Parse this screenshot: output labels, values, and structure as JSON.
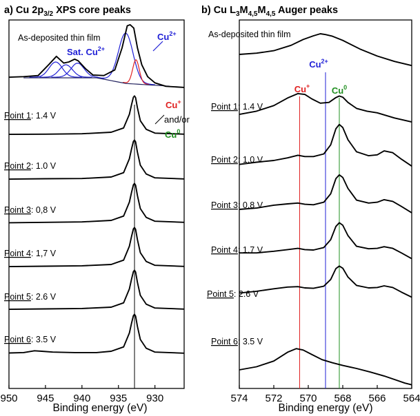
{
  "chart_data": [
    {
      "type": "line",
      "title_main": "a) Cu 2p",
      "title_sub": "3/2",
      "title_rest": " XPS core peaks",
      "xlabel": "Binding energy (eV)",
      "ylabel": "",
      "x_reversed": true,
      "xlim": [
        950,
        926
      ],
      "xticks": [
        950,
        945,
        940,
        935,
        930
      ],
      "yticks": [],
      "reference_line": {
        "x": 932.8,
        "color": "#000000"
      },
      "annotations": {
        "sat": "Sat. Cu",
        "sat_sup": "2+",
        "cu2": "Cu",
        "cu2_sup": "2+",
        "cu1": "Cu",
        "cu1_sup": "+",
        "andor": "and/or",
        "cu0": "Cu",
        "cu0_sup": "0"
      },
      "colors": {
        "cu2plus": "#1f1fd6",
        "cu1plus": "#e02020",
        "cu0": "#1f8f1f",
        "background": "#23235f"
      },
      "series": [
        {
          "name": "As-deposited thin film",
          "label_prefix": "As-deposited thin film",
          "label_value": "",
          "x": [
            950,
            948,
            946,
            944.5,
            943.5,
            942.5,
            941.8,
            941,
            940.5,
            939.5,
            938.5,
            937,
            935.5,
            934.5,
            933.8,
            933.4,
            932.9,
            932.4,
            931.8,
            931,
            930,
            928.5,
            926
          ],
          "y": [
            2.3,
            2.4,
            2.6,
            4.6,
            6.0,
            4.8,
            5.0,
            5.5,
            5.2,
            3.8,
            2.7,
            2.6,
            3.6,
            7.5,
            11.4,
            11.6,
            11.0,
            7.5,
            4.5,
            2.4,
            1.3,
            0.7,
            0.5
          ]
        },
        {
          "name": "Point 1",
          "label_prefix": "Point 1",
          "label_value": ": 1.4 V",
          "x": [
            950,
            945,
            940,
            936,
            934.3,
            933.5,
            933.2,
            932.95,
            932.8,
            932.65,
            932.4,
            932.0,
            931.2,
            930,
            926
          ],
          "y": [
            0.3,
            0.35,
            0.45,
            0.8,
            1.8,
            5.0,
            7.3,
            9.0,
            9.3,
            8.9,
            6.5,
            3.5,
            1.5,
            0.6,
            0.35
          ]
        },
        {
          "name": "Point 2",
          "label_prefix": "Point 2",
          "label_value": ": 1.0 V",
          "x": [
            950,
            945,
            940,
            936,
            934.3,
            933.5,
            933.2,
            932.95,
            932.8,
            932.65,
            932.4,
            932.0,
            931.2,
            930,
            926
          ],
          "y": [
            0.3,
            0.4,
            0.45,
            0.8,
            1.8,
            5.0,
            7.3,
            9.0,
            9.3,
            8.9,
            6.5,
            3.5,
            1.5,
            0.6,
            0.35
          ]
        },
        {
          "name": "Point 3",
          "label_prefix": "Point 3",
          "label_value": ": 0,8 V",
          "x": [
            950,
            945,
            940,
            936,
            934.3,
            933.5,
            933.2,
            932.95,
            932.8,
            932.65,
            932.4,
            932.0,
            931.2,
            930,
            926
          ],
          "y": [
            0.25,
            0.35,
            0.45,
            0.8,
            1.8,
            5.0,
            7.3,
            9.0,
            9.3,
            8.9,
            6.5,
            3.5,
            1.5,
            0.6,
            0.35
          ]
        },
        {
          "name": "Point 4",
          "label_prefix": "Point 4",
          "label_value": ": 1,7 V",
          "x": [
            950,
            945,
            940,
            936,
            934.3,
            933.5,
            933.2,
            932.95,
            932.8,
            932.65,
            932.4,
            932.0,
            931.2,
            930,
            926
          ],
          "y": [
            0.3,
            0.4,
            0.5,
            0.8,
            1.8,
            5.0,
            7.3,
            9.0,
            9.3,
            8.9,
            6.5,
            3.5,
            1.5,
            0.6,
            0.35
          ]
        },
        {
          "name": "Point 5",
          "label_prefix": "Point 5",
          "label_value": ": 2.6 V",
          "x": [
            950,
            945,
            940,
            936,
            934.3,
            933.5,
            933.2,
            932.95,
            932.8,
            932.65,
            932.4,
            932.0,
            931.2,
            930,
            926
          ],
          "y": [
            0.3,
            0.4,
            0.5,
            0.8,
            1.8,
            5.0,
            7.3,
            9.0,
            9.3,
            8.9,
            6.5,
            3.5,
            1.5,
            0.6,
            0.35
          ]
        },
        {
          "name": "Point 6",
          "label_prefix": "Point 6",
          "label_value": ": 3.5 V",
          "x": [
            950,
            948,
            946.5,
            945.5,
            944,
            941,
            938,
            936,
            934.3,
            933.5,
            933.2,
            932.95,
            932.8,
            932.65,
            932.4,
            932.0,
            931.2,
            930,
            926
          ],
          "y": [
            0.4,
            0.5,
            0.9,
            0.8,
            0.6,
            0.5,
            0.5,
            0.8,
            1.8,
            5.0,
            7.3,
            9.0,
            9.3,
            8.9,
            6.5,
            3.5,
            1.5,
            0.6,
            0.35
          ]
        }
      ],
      "fit_components": [
        {
          "name": "Cu2+ main",
          "color": "#1f1fd6",
          "center": 934.0,
          "sigma": 1.0,
          "amplitude": 8.8
        },
        {
          "name": "Cu+ / Cu0",
          "color": "#e02020",
          "center": 932.6,
          "sigma": 0.45,
          "amplitude": 4.2
        },
        {
          "name": "Sat 1",
          "color": "#1f1fd6",
          "center": 943.6,
          "sigma": 0.9,
          "amplitude": 2.7
        },
        {
          "name": "Sat 2",
          "color": "#1f1fd6",
          "center": 942.2,
          "sigma": 0.9,
          "amplitude": 2.2
        },
        {
          "name": "Sat 3",
          "color": "#1f1fd6",
          "center": 940.6,
          "sigma": 0.9,
          "amplitude": 2.5
        }
      ]
    },
    {
      "type": "line",
      "title_main": "b) Cu L",
      "title_parts": [
        {
          "t": "b) Cu L",
          "s": ""
        },
        {
          "t": "",
          "s": "3"
        },
        {
          "t": "M",
          "s": ""
        },
        {
          "t": "",
          "s": "4,5"
        },
        {
          "t": "M",
          "s": ""
        },
        {
          "t": "",
          "s": "4,5"
        },
        {
          "t": " Auger peaks",
          "s": ""
        }
      ],
      "xlabel": "Binding energy (eV)",
      "ylabel": "",
      "x_reversed": true,
      "xlim": [
        574,
        564
      ],
      "xticks": [
        574,
        572,
        570,
        568,
        566,
        564
      ],
      "yticks": [],
      "reference_lines": [
        {
          "name": "Cu+",
          "x": 570.5,
          "color": "#e02020",
          "label": "Cu",
          "sup": "+"
        },
        {
          "name": "Cu2+",
          "x": 569.0,
          "color": "#1f1fd6",
          "label": "Cu",
          "sup": "2+"
        },
        {
          "name": "Cu0",
          "x": 568.2,
          "color": "#1f8f1f",
          "label": "Cu",
          "sup": "0"
        }
      ],
      "series": [
        {
          "name": "As-deposited thin film",
          "label_prefix": "As-deposited thin film",
          "label_value": "",
          "x": [
            574,
            573,
            572,
            571,
            570.3,
            569.7,
            569.3,
            569.0,
            568.6,
            568,
            567,
            566,
            565,
            564
          ],
          "y": [
            3.0,
            3.3,
            3.9,
            5.2,
            6.6,
            7.5,
            8.0,
            7.8,
            7.4,
            6.4,
            4.3,
            2.6,
            1.3,
            0.3
          ]
        },
        {
          "name": "Point 1",
          "label_prefix": "Point 1",
          "label_value": ": 1.4 V",
          "x": [
            574,
            573,
            572,
            571.2,
            570.6,
            570.2,
            569.8,
            569.3,
            568.8,
            568.4,
            568.2,
            568.0,
            567.7,
            567.2,
            566.6,
            566.0,
            565.0,
            564
          ],
          "y": [
            2.4,
            3.2,
            4.6,
            6.5,
            7.6,
            7.4,
            6.3,
            5.2,
            5.4,
            6.6,
            7.0,
            6.7,
            5.4,
            3.9,
            3.2,
            2.8,
            1.5,
            0.5
          ]
        },
        {
          "name": "Point 2",
          "label_prefix": "Point 2",
          "label_value": ": 1.0 V",
          "x": [
            574,
            573,
            572,
            571.2,
            570.6,
            570.2,
            569.7,
            569.1,
            568.7,
            568.4,
            568.2,
            568.0,
            567.7,
            567.2,
            566.5,
            566.0,
            565.6,
            565.1,
            564.6,
            564
          ],
          "y": [
            1.8,
            2.3,
            2.7,
            3.3,
            3.9,
            3.6,
            3.6,
            4.2,
            6.3,
            10.0,
            11.0,
            10.3,
            7.5,
            4.7,
            3.8,
            4.0,
            4.9,
            4.5,
            3.0,
            1.4
          ]
        },
        {
          "name": "Point 3",
          "label_prefix": "Point 3",
          "label_value": ": 0.8 V",
          "x": [
            574,
            573,
            572,
            571.2,
            570.6,
            570.2,
            569.7,
            569.1,
            568.7,
            568.4,
            568.2,
            568.0,
            567.7,
            567.2,
            566.5,
            566.0,
            565.6,
            565.1,
            564.6,
            564
          ],
          "y": [
            2.3,
            2.6,
            3.3,
            3.6,
            3.8,
            3.5,
            3.4,
            4.0,
            6.0,
            9.6,
            10.5,
            9.9,
            7.3,
            4.5,
            3.8,
            4.0,
            4.6,
            4.2,
            3.0,
            1.5
          ]
        },
        {
          "name": "Point 4",
          "label_prefix": "Point 4",
          "label_value": ": 1.7 V",
          "x": [
            574,
            573,
            572,
            571.2,
            570.6,
            570.2,
            569.7,
            569.1,
            568.7,
            568.4,
            568.2,
            568.0,
            567.7,
            567.2,
            566.5,
            566.0,
            565.6,
            565.1,
            564.6,
            564
          ],
          "y": [
            2.8,
            2.8,
            3.2,
            3.6,
            3.9,
            3.6,
            3.5,
            4.1,
            6.0,
            9.2,
            10.1,
            9.5,
            7.0,
            4.4,
            3.8,
            3.9,
            4.3,
            3.9,
            2.8,
            1.4
          ]
        },
        {
          "name": "Point 5",
          "label_prefix": "Point 5",
          "label_value": ": 2.6 V",
          "x": [
            574,
            573,
            572,
            571.2,
            570.6,
            570.2,
            569.7,
            569.1,
            568.7,
            568.4,
            568.2,
            568.0,
            567.7,
            567.2,
            566.5,
            566.0,
            565.6,
            565.1,
            564.6,
            564
          ],
          "y": [
            2.4,
            2.8,
            3.4,
            3.8,
            3.9,
            3.6,
            3.5,
            4.0,
            5.6,
            8.2,
            8.8,
            8.3,
            6.2,
            4.2,
            3.6,
            3.7,
            4.1,
            3.7,
            2.6,
            1.4
          ]
        },
        {
          "name": "Point 6",
          "label_prefix": "Point 6",
          "label_value": ": 3.5 V",
          "x": [
            574,
            573,
            572,
            571.2,
            570.7,
            570.3,
            569.8,
            569.2,
            568.6,
            568.0,
            567.2,
            566.4,
            565.6,
            565.0,
            564.4,
            564
          ],
          "y": [
            3.6,
            4.3,
            5.6,
            7.6,
            8.4,
            8.1,
            7.1,
            5.9,
            5.2,
            4.6,
            3.9,
            3.1,
            2.2,
            1.4,
            0.6,
            0.2
          ]
        }
      ]
    }
  ]
}
